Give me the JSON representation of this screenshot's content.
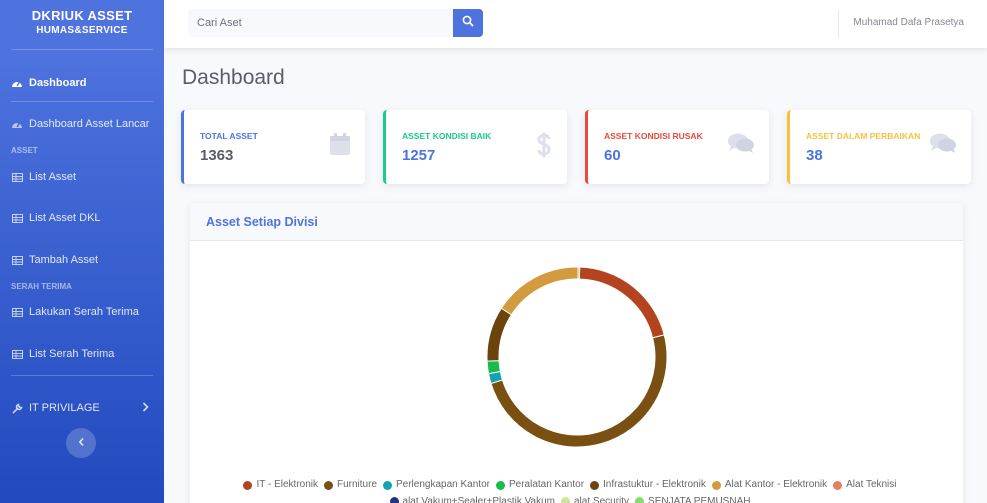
{
  "sidebar": {
    "brand_title": "DKRIUK ASSET",
    "brand_subtitle": "HUMAS&SERVICE",
    "items": [
      {
        "label": "Dashboard",
        "icon": "tachometer-icon",
        "active": true
      },
      {
        "label": "Dashboard Asset Lancar",
        "icon": "tachometer-icon"
      },
      {
        "label": "List Asset",
        "icon": "table-icon"
      },
      {
        "label": "List Asset DKL",
        "icon": "table-icon"
      },
      {
        "label": "Tambah Asset",
        "icon": "table-icon"
      },
      {
        "label": "Lakukan Serah Terima",
        "icon": "table-icon"
      },
      {
        "label": "List Serah Terima",
        "icon": "table-icon"
      },
      {
        "label": "IT PRIVILAGE",
        "icon": "wrench-icon"
      }
    ],
    "heading_asset": "ASSET",
    "heading_serah": "SERAH TERIMA",
    "accent": "#4e73df"
  },
  "topbar": {
    "search_placeholder": "Cari Aset",
    "user_name": "Muhamad Dafa Prasetya"
  },
  "page": {
    "title": "Dashboard"
  },
  "cards": [
    {
      "label": "TOTAL ASSET",
      "value": "1363",
      "color": "#4e73df",
      "value_color": "#5a5c69",
      "icon": "calendar-icon"
    },
    {
      "label": "ASSET KONDISI BAIK",
      "value": "1257",
      "color": "#1cc88a",
      "value_color": "#4e73df",
      "icon": "dollar-icon"
    },
    {
      "label": "ASSET KONDISI RUSAK",
      "value": "60",
      "color": "#e74a3b",
      "value_color": "#4e73df",
      "icon": "comments-icon"
    },
    {
      "label": "ASSET DALAM PERBAIKAN",
      "value": "38",
      "color": "#f6c23e",
      "value_color": "#4e73df",
      "icon": "comments-icon"
    }
  ],
  "panel": {
    "title": "Asset Setiap Divisi"
  },
  "chart_data": {
    "type": "pie",
    "labels": [
      "IT - Elektronik",
      "Furniture",
      "Perlengkapan Kantor",
      "Peralatan Kantor",
      "Infrastuktur - Elektronik",
      "Alat Kantor - Elektronik",
      "Alat Teknisi",
      "alat Vakum+Sealer+Plastik Vakum",
      "alat Security",
      "SENJATA PEMUSNAH"
    ],
    "values": [
      230,
      550,
      20,
      25,
      110,
      180,
      3,
      0,
      0,
      0
    ],
    "colors": [
      "#b4441f",
      "#7a4f12",
      "#14a2b0",
      "#17bd4a",
      "#6b430d",
      "#d49a3e",
      "#e28060",
      "#1f3380",
      "#cfe39a",
      "#7fe06a"
    ],
    "donut": true
  }
}
